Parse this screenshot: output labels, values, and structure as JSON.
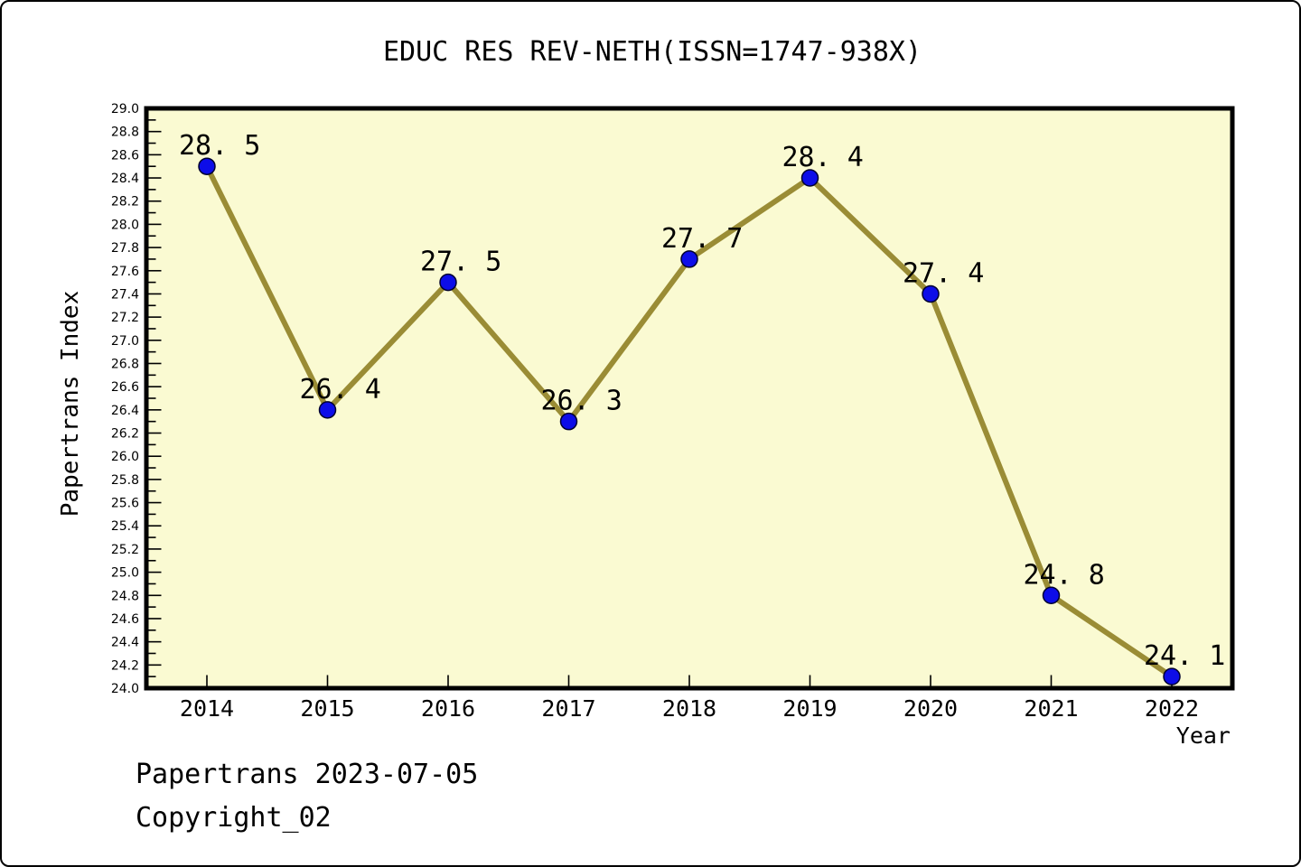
{
  "title": "EDUC RES REV-NETH(ISSN=1747-938X)",
  "footer": {
    "line1": "Papertrans 2023-07-05",
    "line2": "Copyright_02"
  },
  "chart_data": {
    "type": "line",
    "x": [
      2014,
      2015,
      2016,
      2017,
      2018,
      2019,
      2020,
      2021,
      2022
    ],
    "values": [
      28.5,
      26.4,
      27.5,
      26.3,
      27.7,
      28.4,
      27.4,
      24.8,
      24.1
    ],
    "point_labels": [
      "28.5",
      "26.4",
      "27.5",
      "26.3",
      "27.7",
      "28.4",
      "27.4",
      "24.8",
      "24.1"
    ],
    "title": "EDUC RES REV-NETH(ISSN=1747-938X)",
    "xlabel": "Year",
    "ylabel": "Papertrans Index",
    "ylim": [
      24.0,
      29.0
    ],
    "y_major_step": 0.2,
    "y_minor_step": 0.1,
    "grid": false,
    "legend": null,
    "colors": {
      "plot_bg": "#FAFAD2",
      "line": "#9A8C35",
      "marker": "#0D0DE8",
      "marker_edge": "#000030",
      "border": "#000000",
      "text": "#000000"
    }
  }
}
